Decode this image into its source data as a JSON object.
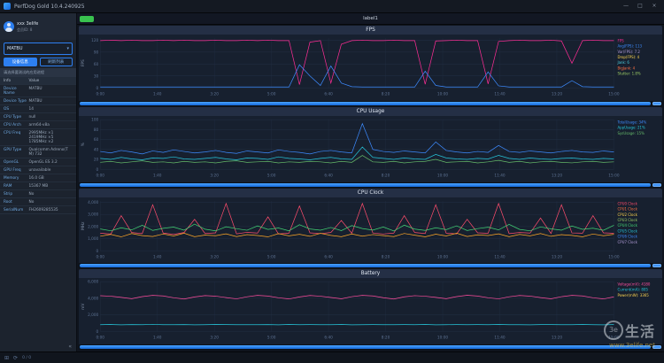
{
  "window": {
    "title": "PerfDog Gold 10.4.240925"
  },
  "icons": {
    "minimize": "—",
    "maximize": "□",
    "close": "×",
    "caret": "▾",
    "collapse": "«",
    "grid": "⊞",
    "refresh": "⟳"
  },
  "sidebar": {
    "user_name": "xxx 3elife",
    "user_meta": "会员ID: 8",
    "device_name": "MATBU",
    "buttons": {
      "info": "设备信息",
      "refresh": "刷新列表"
    },
    "hint": "请选择要测试的应用进程",
    "table": {
      "headers": [
        "Info",
        "Value"
      ],
      "rows": [
        [
          "Device Name",
          "MATBU"
        ],
        [
          "Device Type",
          "MATBU"
        ],
        [
          "OS",
          "14"
        ],
        [
          "CPU Type",
          "null"
        ],
        [
          "CPU Arch",
          "arm64-v8a"
        ],
        [
          "CPU Freq",
          "2995MHz ×1\n2419MHz ×5\n1785MHz ×2"
        ],
        [
          "GPU Type",
          "Qualcomm Adreno(TM) 732"
        ],
        [
          "OpenGL",
          "OpenGL ES 3.2"
        ],
        [
          "GPU Freq",
          "unavailable"
        ],
        [
          "Memory",
          "16.0 GB"
        ],
        [
          "RAM",
          "15367 MB"
        ],
        [
          "Strip",
          "No"
        ],
        [
          "Root",
          "No"
        ],
        [
          "SerialNum",
          "FH2609285535"
        ]
      ]
    }
  },
  "top_strip": {
    "case_label": "label1"
  },
  "statusbar": {
    "counter": "0 / 0"
  },
  "watermark": {
    "logo": "3e",
    "text": "生活",
    "url": "www.3elife.net"
  },
  "chart_data": [
    {
      "type": "line",
      "title": "FPS",
      "ylabel": "FPS",
      "ylim": [
        0,
        125
      ],
      "yticks": [
        0,
        30,
        60,
        90,
        120
      ],
      "x_labels": [
        "0:00",
        "1:40",
        "3:20",
        "5:00",
        "6:40",
        "8:20",
        "10:00",
        "11:40",
        "13:20",
        "15:00"
      ],
      "series": [
        {
          "name": "FPS",
          "color": "#ff2d95",
          "values": [
            119,
            120,
            119,
            120,
            119,
            119,
            120,
            119,
            120,
            119,
            119,
            120,
            119,
            119,
            120,
            119,
            120,
            119,
            119,
            8,
            115,
            119,
            12,
            110,
            119,
            120,
            119,
            119,
            120,
            119,
            119,
            9,
            118,
            119,
            120,
            119,
            119,
            10,
            117,
            119,
            120,
            119,
            119,
            120,
            118,
            62,
            119,
            120,
            119,
            119
          ]
        },
        {
          "name": "Jank",
          "color": "#3d8bff",
          "values": [
            2,
            2,
            2,
            2,
            2,
            2,
            2,
            2,
            2,
            2,
            2,
            2,
            2,
            2,
            2,
            2,
            2,
            2,
            2,
            58,
            30,
            6,
            55,
            12,
            3,
            2,
            2,
            2,
            2,
            2,
            2,
            42,
            6,
            2,
            2,
            2,
            2,
            40,
            5,
            2,
            2,
            2,
            2,
            2,
            2,
            18,
            3,
            2,
            2,
            2
          ]
        }
      ],
      "legend": [
        {
          "label": "FPS",
          "color": "#ff2d95"
        },
        {
          "label": "Avg(FPS): 113",
          "color": "#3d8bff"
        },
        {
          "label": "Var(FPS): 7.2",
          "color": "#b39ddb"
        },
        {
          "label": "Drop(FPS): 4",
          "color": "#ffd54f"
        },
        {
          "label": "Jank: 6",
          "color": "#4dd0e1"
        },
        {
          "label": "BigJank: 4",
          "color": "#ff7043"
        },
        {
          "label": "Stutter: 1.8%",
          "color": "#9ccc65"
        }
      ]
    },
    {
      "type": "line",
      "title": "CPU Usage",
      "ylabel": "%",
      "ylim": [
        0,
        100
      ],
      "yticks": [
        0,
        20,
        40,
        60,
        80,
        100
      ],
      "x_labels": [
        "0:00",
        "1:40",
        "3:20",
        "5:00",
        "6:40",
        "8:20",
        "10:00",
        "11:40",
        "13:20",
        "15:00"
      ],
      "series": [
        {
          "name": "TotalUsage",
          "color": "#3d8bff",
          "values": [
            36,
            33,
            38,
            35,
            31,
            37,
            34,
            39,
            36,
            33,
            35,
            38,
            34,
            32,
            37,
            35,
            33,
            39,
            36,
            34,
            31,
            36,
            38,
            35,
            33,
            92,
            40,
            36,
            34,
            37,
            35,
            33,
            55,
            38,
            35,
            33,
            36,
            34,
            48,
            36,
            34,
            37,
            35,
            33,
            36,
            38,
            35,
            34,
            37,
            35
          ]
        },
        {
          "name": "AppUsage",
          "color": "#26c6da",
          "values": [
            22,
            20,
            24,
            21,
            19,
            23,
            22,
            25,
            21,
            20,
            22,
            24,
            21,
            19,
            23,
            22,
            20,
            25,
            22,
            21,
            19,
            22,
            24,
            21,
            20,
            45,
            24,
            22,
            20,
            23,
            21,
            20,
            30,
            23,
            21,
            20,
            22,
            21,
            28,
            22,
            20,
            23,
            21,
            20,
            22,
            23,
            21,
            20,
            22,
            21
          ]
        },
        {
          "name": "SysUsage",
          "color": "#66bb6a",
          "values": [
            14,
            16,
            13,
            15,
            17,
            14,
            15,
            13,
            16,
            14,
            15,
            13,
            16,
            17,
            14,
            15,
            16,
            13,
            15,
            14,
            16,
            15,
            13,
            16,
            14,
            28,
            15,
            14,
            16,
            13,
            15,
            16,
            20,
            14,
            15,
            16,
            13,
            15,
            18,
            14,
            16,
            13,
            15,
            16,
            14,
            13,
            15,
            16,
            14,
            15
          ]
        }
      ],
      "legend": [
        {
          "label": "TotalUsage: 34%",
          "color": "#3d8bff"
        },
        {
          "label": "AppUsage: 21%",
          "color": "#26c6da"
        },
        {
          "label": "SysUsage: 15%",
          "color": "#66bb6a"
        }
      ]
    },
    {
      "type": "line",
      "title": "CPU Clock",
      "ylabel": "MHz",
      "ylim": [
        0,
        4100
      ],
      "yticks": [
        0,
        1000,
        2000,
        3000,
        4000
      ],
      "x_labels": [
        "0:00",
        "1:40",
        "3:20",
        "5:00",
        "6:40",
        "8:20",
        "10:00",
        "11:40",
        "13:20",
        "15:00"
      ],
      "series": [
        {
          "name": "CPU0 Clock",
          "color": "#ff4d6d",
          "values": [
            1450,
            1380,
            2900,
            1500,
            1420,
            3800,
            1460,
            1350,
            1500,
            2600,
            1430,
            1480,
            3900,
            1400,
            1520,
            1460,
            2800,
            1390,
            1450,
            3700,
            1480,
            1420,
            1500,
            2500,
            1440,
            3900,
            1470,
            1380,
            1460,
            2900,
            1500,
            1430,
            3800,
            1450,
            1400,
            2600,
            1480,
            1440,
            3900,
            1420,
            1500,
            1460,
            2700,
            1430,
            3800,
            1470,
            1450,
            2900,
            1480,
            1440
          ]
        },
        {
          "name": "CPU4 Clock",
          "color": "#43d675",
          "values": [
            1800,
            1650,
            1900,
            1720,
            2100,
            1680,
            1850,
            1950,
            1700,
            2200,
            1780,
            1640,
            1980,
            1820,
            1690,
            2050,
            1760,
            1880,
            1650,
            2150,
            1800,
            1700,
            1920,
            1660,
            2080,
            1840,
            1710,
            1960,
            1630,
            2120,
            1790,
            1680,
            1900,
            1750,
            2060,
            1670,
            1830,
            1940,
            1720,
            2180,
            1760,
            1650,
            1970,
            1810,
            1700,
            2040,
            1770,
            1860,
            1690,
            2100
          ]
        },
        {
          "name": "CPU7 Clock",
          "color": "#ffa726",
          "values": [
            1200,
            1350,
            1150,
            1420,
            1250,
            1180,
            1380,
            1220,
            1450,
            1160,
            1300,
            1240,
            1400,
            1170,
            1330,
            1260,
            1150,
            1410,
            1230,
            1360,
            1190,
            1440,
            1270,
            1160,
            1390,
            1210,
            1340,
            1250,
            1170,
            1430,
            1280,
            1150,
            1370,
            1220,
            1450,
            1180,
            1310,
            1260,
            1400,
            1160,
            1350,
            1230,
            1420,
            1190,
            1330,
            1270,
            1150,
            1380,
            1240,
            1360
          ]
        }
      ],
      "legend": [
        {
          "label": "CPU0 Clock",
          "color": "#ff4d6d"
        },
        {
          "label": "CPU1 Clock",
          "color": "#ff7043"
        },
        {
          "label": "CPU2 Clock",
          "color": "#ffd54f"
        },
        {
          "label": "CPU3 Clock",
          "color": "#9ccc65"
        },
        {
          "label": "CPU4 Clock",
          "color": "#43d675"
        },
        {
          "label": "CPU5 Clock",
          "color": "#26c6da"
        },
        {
          "label": "CPU6 Clock",
          "color": "#3d8bff"
        },
        {
          "label": "CPU7 Clock",
          "color": "#b39ddb"
        }
      ]
    },
    {
      "type": "line",
      "title": "Battery",
      "ylabel": "mV",
      "ylim": [
        0,
        6000
      ],
      "yticks": [
        0,
        2000,
        4000,
        6000
      ],
      "x_labels": [
        "0:00",
        "1:40",
        "3:20",
        "5:00",
        "6:40",
        "8:20",
        "10:00",
        "11:40",
        "13:20",
        "15:00"
      ],
      "series": [
        {
          "name": "Voltage",
          "color": "#ff4d9e",
          "values": [
            4300,
            4250,
            4100,
            3950,
            4200,
            4350,
            4280,
            4050,
            3900,
            4150,
            4320,
            4260,
            4080,
            3920,
            4180,
            4340,
            4270,
            4060,
            3910,
            4160,
            4330,
            4250,
            4090,
            3930,
            4190,
            4350,
            4280,
            4070,
            3900,
            4170,
            4310,
            4240,
            4100,
            3940,
            4200,
            4360,
            4270,
            4050,
            3920,
            4180,
            4330,
            4260,
            4080,
            3930,
            4190,
            4340,
            4280,
            4060,
            3910,
            4170
          ]
        },
        {
          "name": "Current",
          "color": "#26c6da",
          "values": [
            800,
            820,
            790,
            810,
            800,
            830,
            795,
            805,
            815,
            790,
            800,
            820,
            810,
            795,
            805,
            800,
            815,
            790,
            820,
            800,
            810,
            795,
            805,
            820,
            790,
            800,
            815,
            805,
            795,
            810,
            800,
            820,
            790,
            805,
            815,
            800,
            810,
            795,
            820,
            800,
            805,
            790,
            815,
            810,
            795,
            800,
            820,
            805,
            790,
            810
          ]
        }
      ],
      "legend": [
        {
          "label": "Voltage(mV): 4180",
          "color": "#ff4d9e"
        },
        {
          "label": "Current(mA): 805",
          "color": "#26c6da"
        },
        {
          "label": "Power(mW): 3365",
          "color": "#ffd54f"
        }
      ]
    }
  ]
}
